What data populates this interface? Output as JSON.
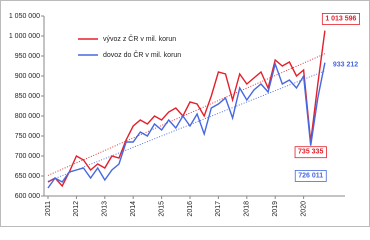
{
  "chart_data": {
    "type": "line",
    "categories": [
      "2011",
      null,
      null,
      null,
      "2012",
      null,
      null,
      null,
      "2013",
      null,
      null,
      null,
      "2014",
      null,
      null,
      null,
      "2015",
      null,
      null,
      null,
      "2016",
      null,
      null,
      null,
      "2017",
      null,
      null,
      null,
      "2018",
      null,
      null,
      null,
      "2019",
      null,
      null,
      null,
      "2020",
      null,
      null,
      null
    ],
    "series": [
      {
        "name": "vývoz z ČR v mil. korun",
        "color": "#e3202b",
        "values": [
          635000,
          645000,
          625000,
          660000,
          700000,
          690000,
          665000,
          680000,
          670000,
          700000,
          695000,
          740000,
          775000,
          790000,
          780000,
          800000,
          790000,
          810000,
          820000,
          800000,
          835000,
          830000,
          800000,
          850000,
          910000,
          905000,
          840000,
          905000,
          880000,
          895000,
          910000,
          870000,
          940000,
          925000,
          935000,
          900000,
          915000,
          735335,
          880000,
          1013596
        ],
        "value_labels": [
          null,
          null,
          null,
          null,
          null,
          null,
          null,
          null,
          null,
          null,
          null,
          null,
          null,
          null,
          null,
          null,
          null,
          null,
          null,
          null,
          null,
          null,
          null,
          null,
          null,
          null,
          null,
          null,
          null,
          null,
          null,
          null,
          null,
          null,
          null,
          null,
          null,
          "735 335",
          null,
          "1 013 596"
        ]
      },
      {
        "name": "dovoz do ČR v mil. korun",
        "color": "#4668e0",
        "values": [
          620000,
          645000,
          635000,
          660000,
          665000,
          670000,
          645000,
          670000,
          640000,
          665000,
          680000,
          735000,
          735000,
          760000,
          750000,
          780000,
          765000,
          790000,
          770000,
          800000,
          775000,
          805000,
          755000,
          820000,
          830000,
          845000,
          795000,
          870000,
          840000,
          865000,
          880000,
          860000,
          930000,
          880000,
          890000,
          870000,
          900000,
          726011,
          845000,
          933212
        ],
        "value_labels": [
          null,
          null,
          null,
          null,
          null,
          null,
          null,
          null,
          null,
          null,
          null,
          null,
          null,
          null,
          null,
          null,
          null,
          null,
          null,
          null,
          null,
          null,
          null,
          null,
          null,
          null,
          null,
          null,
          null,
          null,
          null,
          null,
          null,
          null,
          null,
          null,
          null,
          "726 011",
          null,
          "933 212"
        ]
      }
    ],
    "ylim": [
      600000,
      1050000
    ],
    "yticks": [
      {
        "value": 600000,
        "label": "600 000"
      },
      {
        "value": 650000,
        "label": "650 000"
      },
      {
        "value": 700000,
        "label": "700 000"
      },
      {
        "value": 750000,
        "label": "750 000"
      },
      {
        "value": 800000,
        "label": "800 000"
      },
      {
        "value": 850000,
        "label": "850 000"
      },
      {
        "value": 900000,
        "label": "900 000"
      },
      {
        "value": 950000,
        "label": "950 000"
      },
      {
        "value": 1000000,
        "label": "1 000 000"
      },
      {
        "value": 1050000,
        "label": "1 050 000"
      }
    ],
    "trendline": true,
    "grid": false,
    "legend": "upper left"
  }
}
